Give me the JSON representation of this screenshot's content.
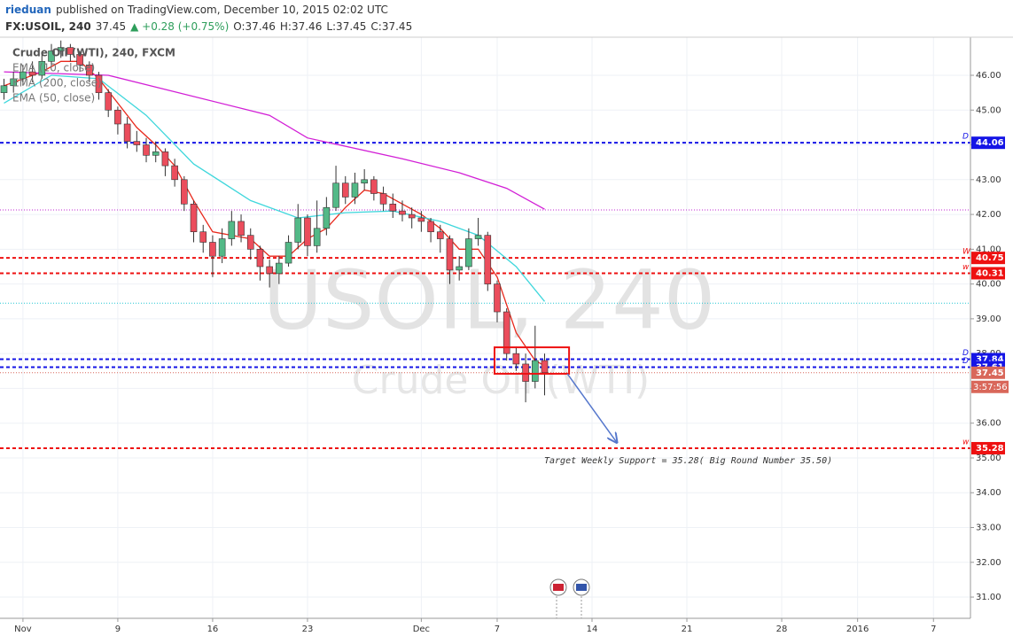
{
  "header": {
    "author": "rieduan",
    "published": "published on TradingView.com, December 10, 2015 02:02 UTC",
    "symbol": "FX:USOIL, 240",
    "last": "37.45",
    "change": "▲ +0.28 (+0.75%)",
    "ohlc": [
      "O:37.46",
      "H:37.46",
      "L:37.45",
      "C:37.45"
    ]
  },
  "chart_data": {
    "type": "candlestick",
    "title": "Crude Oil (WTI), 240, FXCM",
    "watermark": [
      "USOIL, 240",
      "Crude Oil (WTI)"
    ],
    "up_color": "#53b987",
    "down_color": "#eb4d5c",
    "wick_color": "#333333",
    "x": [
      -6,
      -5.5,
      -5,
      -4.5,
      -4,
      -3.5,
      -3,
      -2.5,
      -2,
      -1.5,
      -1,
      -0.5,
      0,
      0.5,
      1,
      1.5,
      2,
      2.5,
      3,
      3.5,
      4,
      4.5,
      5,
      5.5,
      6,
      6.5,
      7,
      7.5,
      8,
      8.5,
      9,
      9.5,
      10,
      10.5,
      11,
      11.5,
      12,
      12.5,
      13,
      13.5,
      14,
      14.5,
      15,
      15.5,
      16,
      16.5,
      17,
      17.5,
      18,
      18.5,
      19,
      19.5,
      20,
      20.5,
      21,
      21.5,
      22,
      22.5
    ],
    "open": [
      45.5,
      45.7,
      45.9,
      46.1,
      46.0,
      46.4,
      46.7,
      46.8,
      46.6,
      46.3,
      46.0,
      45.5,
      45.0,
      44.6,
      44.1,
      44.0,
      43.7,
      43.8,
      43.4,
      43.0,
      42.3,
      41.5,
      41.2,
      40.8,
      41.3,
      41.8,
      41.4,
      41.0,
      40.5,
      40.3,
      40.6,
      41.2,
      41.9,
      41.1,
      41.6,
      42.2,
      42.9,
      42.5,
      42.9,
      43.0,
      42.6,
      42.3,
      42.1,
      42.0,
      41.9,
      41.8,
      41.5,
      41.3,
      40.4,
      40.5,
      41.3,
      41.4,
      40.0,
      39.2,
      38.0,
      37.7,
      37.2,
      37.8
    ],
    "high": [
      45.9,
      46.1,
      46.3,
      46.4,
      46.6,
      46.9,
      47.0,
      46.9,
      46.7,
      46.4,
      46.1,
      45.6,
      45.1,
      44.8,
      44.4,
      44.2,
      44.1,
      43.9,
      43.6,
      43.1,
      42.4,
      41.7,
      41.4,
      41.6,
      42.1,
      42.0,
      41.6,
      41.1,
      40.7,
      40.8,
      41.4,
      42.3,
      42.0,
      42.4,
      42.5,
      43.4,
      43.1,
      43.2,
      43.3,
      43.1,
      42.8,
      42.6,
      42.4,
      42.2,
      42.1,
      41.9,
      41.7,
      41.4,
      40.8,
      41.6,
      41.9,
      41.5,
      40.1,
      39.3,
      38.2,
      38.0,
      38.8,
      38.0
    ],
    "low": [
      45.3,
      45.5,
      45.7,
      45.8,
      45.9,
      46.3,
      46.5,
      46.4,
      46.1,
      45.8,
      45.3,
      44.8,
      44.3,
      43.9,
      43.8,
      43.5,
      43.5,
      43.1,
      42.8,
      42.1,
      41.2,
      40.9,
      40.2,
      40.6,
      41.1,
      41.2,
      40.7,
      40.1,
      39.9,
      40.0,
      40.5,
      41.0,
      40.8,
      40.9,
      41.4,
      42.1,
      42.3,
      42.3,
      42.7,
      42.4,
      42.1,
      41.9,
      41.8,
      41.6,
      41.5,
      41.2,
      40.9,
      40.0,
      40.1,
      40.4,
      41.1,
      39.8,
      38.9,
      37.8,
      37.5,
      36.6,
      37.0,
      36.8
    ],
    "close": [
      45.7,
      45.9,
      46.1,
      46.0,
      46.4,
      46.7,
      46.8,
      46.6,
      46.3,
      46.0,
      45.5,
      45.0,
      44.6,
      44.1,
      44.0,
      43.7,
      43.8,
      43.4,
      43.0,
      42.3,
      41.5,
      41.2,
      40.8,
      41.3,
      41.8,
      41.4,
      41.0,
      40.5,
      40.3,
      40.6,
      41.2,
      41.9,
      41.1,
      41.6,
      42.2,
      42.9,
      42.5,
      42.9,
      43.0,
      42.6,
      42.3,
      42.1,
      42.0,
      41.9,
      41.8,
      41.5,
      41.3,
      40.4,
      40.5,
      41.3,
      41.4,
      40.0,
      39.2,
      38.0,
      37.7,
      37.2,
      37.8,
      37.45
    ],
    "series": [
      {
        "name": "EMA (10, close)",
        "color": "#e8291c",
        "x": [
          -6,
          -4,
          -3,
          -2,
          -1,
          0,
          1,
          2,
          3,
          4,
          5,
          6,
          7,
          8,
          9,
          10,
          11,
          12,
          13,
          14,
          15,
          16,
          17,
          18,
          19,
          20,
          21,
          22,
          22.5
        ],
        "values": [
          45.7,
          46.1,
          46.4,
          46.4,
          45.9,
          45.2,
          44.5,
          44.0,
          43.4,
          42.4,
          41.5,
          41.4,
          41.3,
          40.8,
          40.8,
          41.3,
          41.6,
          42.2,
          42.7,
          42.6,
          42.3,
          42.0,
          41.6,
          41.0,
          41.0,
          40.2,
          38.6,
          37.8,
          37.65
        ]
      },
      {
        "name": "EMA (200, close)",
        "color": "#d21fd6",
        "x": [
          -6,
          -0.5,
          8,
          10,
          15,
          18,
          20.5,
          22.5
        ],
        "values": [
          46.1,
          46.0,
          44.85,
          44.2,
          43.6,
          43.2,
          42.75,
          42.15
        ]
      },
      {
        "name": "EMA (50, close)",
        "color": "#3fd7dc",
        "x": [
          -6,
          -3.5,
          -1,
          1.5,
          4,
          7,
          9.5,
          12,
          14.5,
          17,
          19,
          21,
          22.5
        ],
        "values": [
          45.2,
          46.0,
          45.9,
          44.85,
          43.45,
          42.4,
          41.9,
          42.05,
          42.1,
          41.8,
          41.4,
          40.5,
          39.5
        ]
      }
    ],
    "price_lines": [
      {
        "value": 42.13,
        "color": "#c026d3"
      },
      {
        "value": 39.45,
        "color": "#22c5d3"
      }
    ],
    "levels": [
      {
        "value": 44.06,
        "label": "D",
        "color": "#1515e6"
      },
      {
        "value": 40.75,
        "label": "W",
        "color": "#ee1111"
      },
      {
        "value": 40.31,
        "label": "w",
        "color": "#ee1111"
      },
      {
        "value": 37.84,
        "label": "D",
        "color": "#1515e6"
      },
      {
        "value": 37.61,
        "label": "D",
        "color": "#1515e6"
      },
      {
        "value": 35.28,
        "label": "w",
        "color": "#ee1111"
      }
    ],
    "last_price": 37.45,
    "last_color": "#d9675a",
    "countdown": "3:57:56",
    "box": {
      "x": [
        19.86,
        23.79
      ],
      "y": [
        37.42,
        38.18
      ],
      "color": "#ee1111"
    },
    "arrow": {
      "x": [
        23.7,
        26.3
      ],
      "y": [
        37.42,
        35.45
      ],
      "color": "#5577cc"
    },
    "annotation": "Target Weekly Support = 35.28( Big Round Number 35.50)",
    "xlim": [
      -6.21,
      44.95
    ],
    "ylim": [
      30.39,
      47.095
    ],
    "xticks": [
      {
        "value": -5,
        "label": "Nov"
      },
      {
        "value": 0,
        "label": "9"
      },
      {
        "value": 5,
        "label": "16"
      },
      {
        "value": 10,
        "label": "23"
      },
      {
        "value": 16,
        "label": "Dec"
      },
      {
        "value": 20,
        "label": "7"
      },
      {
        "value": 25,
        "label": "14"
      },
      {
        "value": 30,
        "label": "21"
      },
      {
        "value": 35,
        "label": "28"
      },
      {
        "value": 39,
        "label": "2016"
      },
      {
        "value": 43,
        "label": "7"
      }
    ],
    "yticks": [
      {
        "value": 31,
        "label": "31.00"
      },
      {
        "value": 32,
        "label": "32.00"
      },
      {
        "value": 33,
        "label": "33.00"
      },
      {
        "value": 34,
        "label": "34.00"
      },
      {
        "value": 35,
        "label": "35.00"
      },
      {
        "value": 36,
        "label": "36.00"
      },
      {
        "value": 37,
        "label": "37.00"
      },
      {
        "value": 38,
        "label": "38.00"
      },
      {
        "value": 39,
        "label": "39.00"
      },
      {
        "value": 40,
        "label": "40.00"
      },
      {
        "value": 41,
        "label": "41.00"
      },
      {
        "value": 42,
        "label": "42.00"
      },
      {
        "value": 43,
        "label": "43.00"
      },
      {
        "value": 44,
        "label": "44.00"
      },
      {
        "value": 45,
        "label": "45.00"
      },
      {
        "value": 46,
        "label": "46.00"
      }
    ],
    "grid": true
  }
}
